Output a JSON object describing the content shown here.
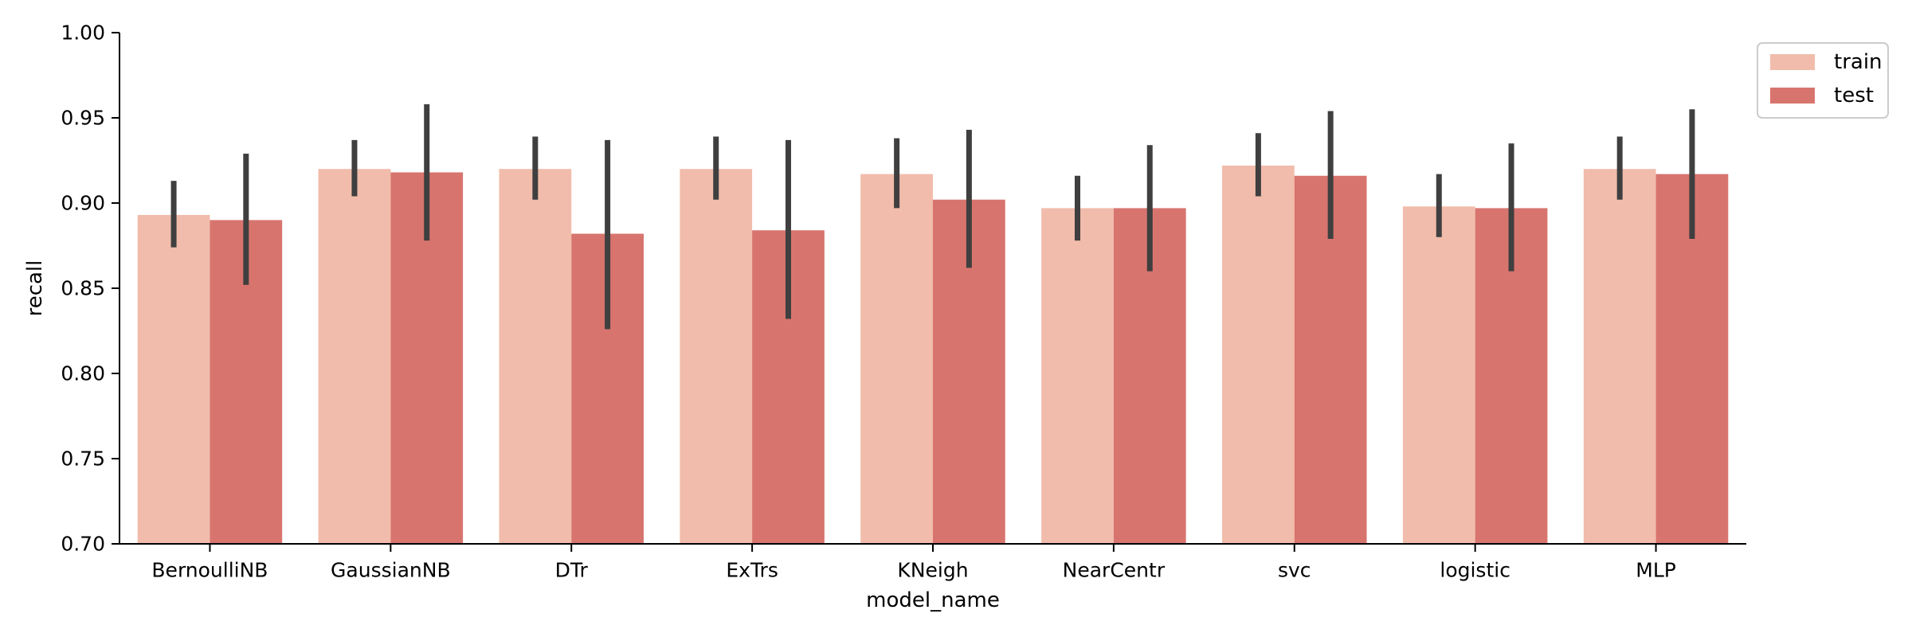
{
  "chart_data": {
    "type": "bar",
    "xlabel": "model_name",
    "ylabel": "recall",
    "ylim": [
      0.7,
      1.0
    ],
    "yticks": [
      "0.70",
      "0.75",
      "0.80",
      "0.85",
      "0.90",
      "0.95",
      "1.00"
    ],
    "grid": false,
    "legend_position": "top-right",
    "categories": [
      "BernoulliNB",
      "GaussianNB",
      "DTr",
      "ExTrs",
      "KNeigh",
      "NearCentr",
      "svc",
      "logistic",
      "MLP"
    ],
    "series": [
      {
        "name": "train",
        "color": "#f1bcab",
        "values": [
          0.893,
          0.92,
          0.92,
          0.92,
          0.917,
          0.897,
          0.922,
          0.898,
          0.92
        ],
        "err_low": [
          0.874,
          0.904,
          0.902,
          0.902,
          0.897,
          0.878,
          0.904,
          0.88,
          0.902
        ],
        "err_high": [
          0.913,
          0.937,
          0.939,
          0.939,
          0.938,
          0.916,
          0.941,
          0.917,
          0.939
        ]
      },
      {
        "name": "test",
        "color": "#d8746e",
        "values": [
          0.89,
          0.918,
          0.882,
          0.884,
          0.902,
          0.897,
          0.916,
          0.897,
          0.917
        ],
        "err_low": [
          0.852,
          0.878,
          0.826,
          0.832,
          0.862,
          0.86,
          0.879,
          0.86,
          0.879
        ],
        "err_high": [
          0.929,
          0.958,
          0.937,
          0.937,
          0.943,
          0.934,
          0.954,
          0.935,
          0.955
        ]
      }
    ]
  }
}
